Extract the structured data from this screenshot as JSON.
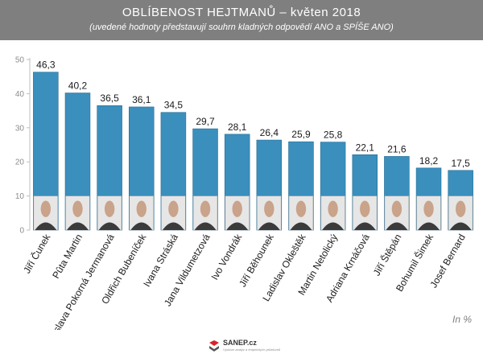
{
  "header": {
    "title": "OBLÍBENOST HEJTMANŮ – květen 2018",
    "subtitle": "(uvedené hodnoty představují souhrn kladných odpovědí ANO a SPÍŠE ANO)"
  },
  "unit_note": "In %",
  "footer": {
    "logo_text": "SANEP.cz",
    "logo_tagline": "Výzkum analýz a empirických průzkumů"
  },
  "colors": {
    "bar": "#3a8fbd",
    "bar_edge": "#2a6e94",
    "header": "#7f7f7f",
    "logo_red": "#d8232a"
  },
  "chart_data": {
    "type": "bar",
    "categories": [
      "Jiří Čunek",
      "Pûta Martin",
      "Jaroslava Pokorná Jermanová",
      "Oldřich Bubeníček",
      "Ivana Stráská",
      "Jana Vildumetzová",
      "Ivo Vondrák",
      "Jiří Běhounek",
      "Ladislav Okleštěk",
      "Martin Netolický",
      "Adriana Krnáčová",
      "Jiří Štěpán",
      "Bohumil Šimek",
      "Josef Bernard"
    ],
    "values": [
      46.3,
      40.2,
      36.5,
      36.1,
      34.5,
      29.7,
      28.1,
      26.4,
      25.9,
      25.8,
      22.1,
      21.6,
      18.2,
      17.5
    ],
    "value_labels": [
      "46,3",
      "40,2",
      "36,5",
      "36,1",
      "34,5",
      "29,7",
      "28,1",
      "26,4",
      "25,9",
      "25,8",
      "22,1",
      "21,6",
      "18,2",
      "17,5"
    ],
    "yticks": [
      "0",
      "10",
      "20",
      "30",
      "40",
      "50"
    ],
    "ylim": [
      0,
      50
    ],
    "grid": false,
    "legend": "none"
  }
}
